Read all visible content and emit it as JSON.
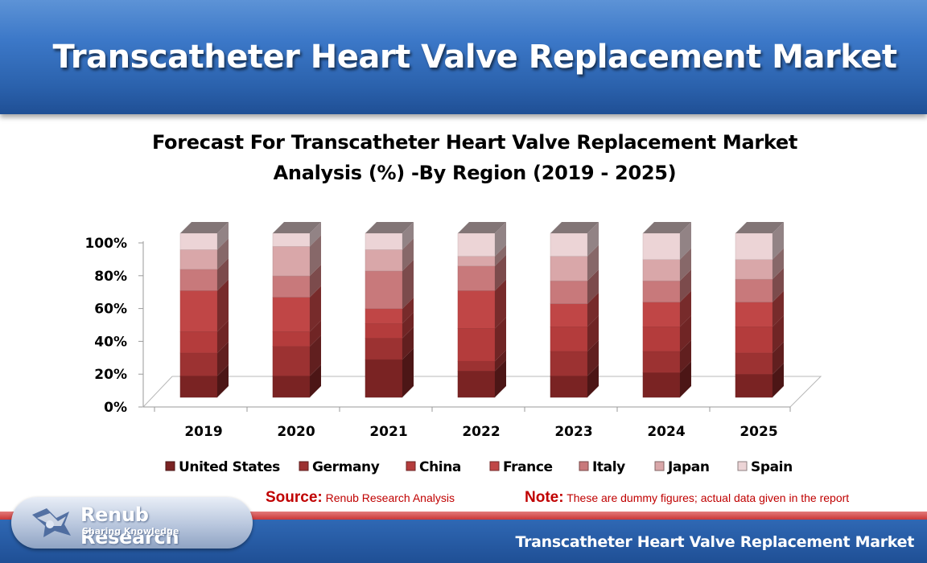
{
  "header": {
    "title": "Transcatheter Heart Valve Replacement Market"
  },
  "chart_data": {
    "type": "bar",
    "stacked": true,
    "percent": true,
    "title_line1": "Forecast For Transcatheter Heart  Valve Replacement Market",
    "title_line2": "Analysis (%) -By Region (2019 - 2025)",
    "categories": [
      "2019",
      "2020",
      "2021",
      "2022",
      "2023",
      "2024",
      "2025"
    ],
    "y_ticks": [
      "0%",
      "20%",
      "40%",
      "60%",
      "80%",
      "100%"
    ],
    "ylim": [
      0,
      100
    ],
    "legend_position": "bottom",
    "series": [
      {
        "name": "United States",
        "color": "#7a2323",
        "values": [
          13,
          13,
          23,
          16,
          13,
          15,
          14
        ]
      },
      {
        "name": "Germany",
        "color": "#9c3232",
        "values": [
          14,
          18,
          13,
          6,
          15,
          13,
          13
        ]
      },
      {
        "name": "China",
        "color": "#b43c3c",
        "values": [
          13,
          9,
          9,
          20,
          15,
          15,
          16
        ]
      },
      {
        "name": "France",
        "color": "#c04646",
        "values": [
          25,
          21,
          9,
          23,
          14,
          15,
          15
        ]
      },
      {
        "name": "Italy",
        "color": "#c8797b",
        "values": [
          13,
          13,
          23,
          15,
          14,
          13,
          14
        ]
      },
      {
        "name": "Japan",
        "color": "#d9a7a9",
        "values": [
          12,
          18,
          13,
          6,
          15,
          13,
          12
        ]
      },
      {
        "name": "Spain",
        "color": "#ecd4d6",
        "values": [
          10,
          8,
          10,
          14,
          14,
          16,
          16
        ]
      }
    ]
  },
  "footer": {
    "source_label": "Source:",
    "source_text": "Renub Research Analysis",
    "note_label": "Note:",
    "note_text": "These are dummy figures; actual data given in the report",
    "title": "Transcatheter Heart Valve Replacement Market",
    "logo_name": "Renub Research",
    "logo_tagline": "Sharing Knowledge"
  }
}
